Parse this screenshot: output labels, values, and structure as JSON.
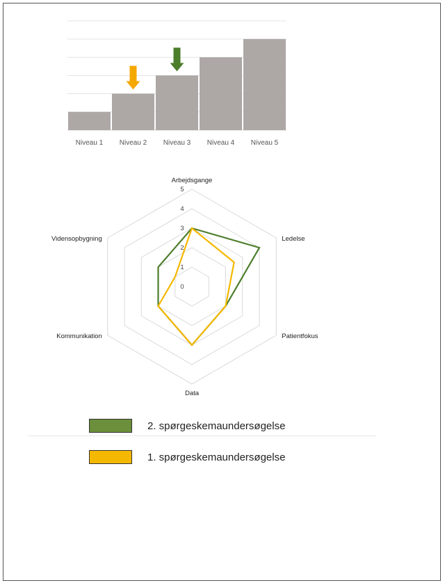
{
  "chart_data": [
    {
      "type": "bar",
      "categories": [
        "Niveau 1",
        "Niveau 2",
        "Niveau 3",
        "Niveau 4",
        "Niveau 5"
      ],
      "values": [
        1,
        2,
        3,
        4,
        5
      ],
      "ylim": [
        0,
        6
      ],
      "grid": true,
      "bar_color": "#ada7a5",
      "markers": [
        {
          "category": "Niveau 2",
          "color": "#f5a800",
          "icon": "arrow-down-icon"
        },
        {
          "category": "Niveau 3",
          "color": "#4c7d2b",
          "icon": "arrow-down-icon"
        }
      ]
    },
    {
      "type": "radar",
      "axes": [
        "Arbejdsgange",
        "Ledelse",
        "Patientfokus",
        "Data",
        "Kommunikation",
        "Vidensopbygning"
      ],
      "ticks": [
        "0",
        "1",
        "2",
        "3",
        "4",
        "5"
      ],
      "range": [
        0,
        5
      ],
      "grid": true,
      "series": [
        {
          "name": "2. spørgeskemaundersøgelse",
          "color": "#4c7d2b",
          "values": [
            3,
            4,
            2,
            3,
            2,
            2
          ]
        },
        {
          "name": "1. spørgeskemaundersøgelse",
          "color": "#f5b800",
          "values": [
            3,
            2.5,
            2,
            3,
            2,
            1
          ]
        }
      ]
    }
  ],
  "legend": {
    "placement": "bottom",
    "items": [
      {
        "label": "2. spørgeskemaundersøgelse",
        "color": "#6b8f3a"
      },
      {
        "label": "1. spørgeskemaundersøgelse",
        "color": "#f5b800"
      }
    ]
  }
}
